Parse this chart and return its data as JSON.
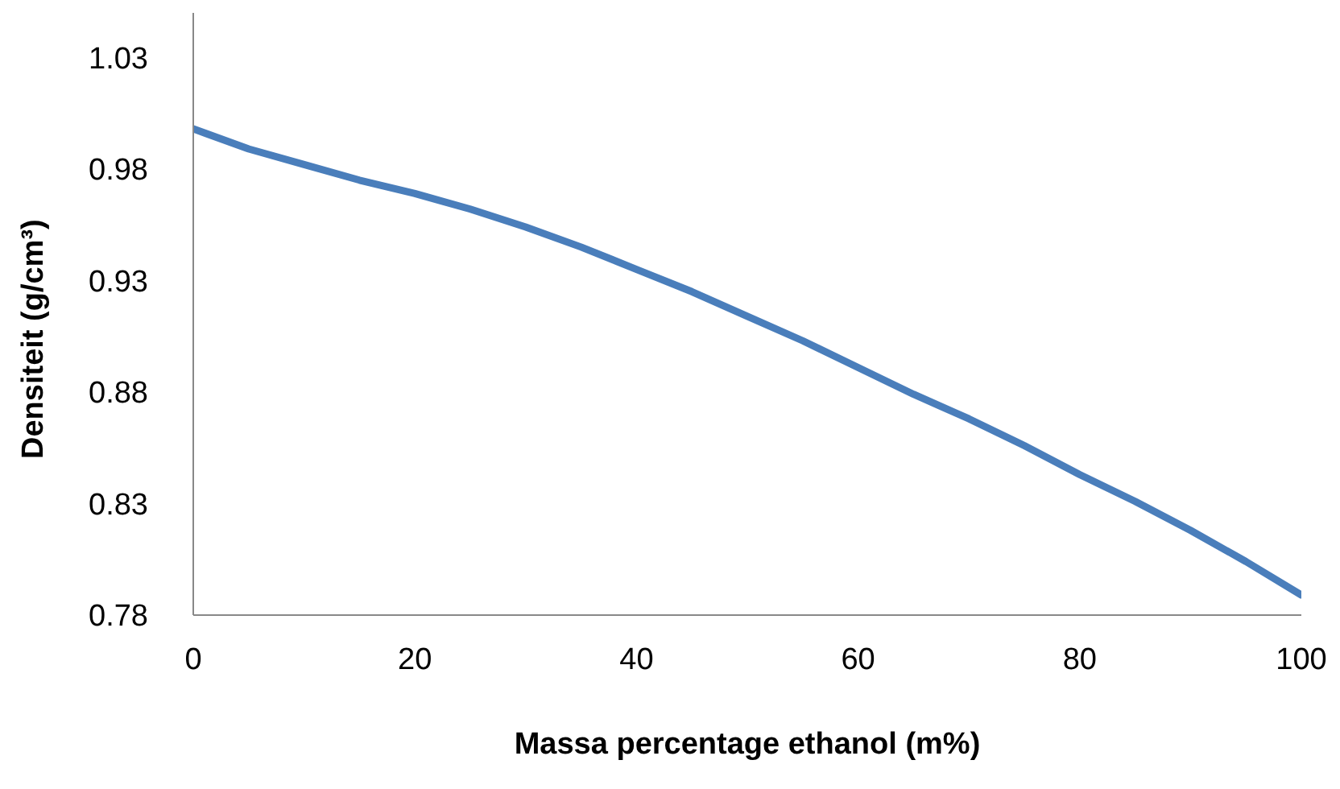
{
  "chart_data": {
    "type": "line",
    "xlabel": "Massa percentage ethanol (m%)",
    "ylabel": "Densiteit (g/cm³)",
    "x": [
      0,
      5,
      10,
      15,
      20,
      25,
      30,
      35,
      40,
      45,
      50,
      55,
      60,
      65,
      70,
      75,
      80,
      85,
      90,
      95,
      100
    ],
    "series": [
      {
        "color": "#4a7ebb",
        "values": [
          0.998,
          0.989,
          0.982,
          0.975,
          0.969,
          0.962,
          0.954,
          0.945,
          0.935,
          0.925,
          0.914,
          0.903,
          0.891,
          0.879,
          0.868,
          0.856,
          0.843,
          0.831,
          0.818,
          0.804,
          0.789
        ]
      }
    ],
    "xlim": [
      0,
      100
    ],
    "xticks": [
      0,
      20,
      40,
      60,
      80,
      100
    ],
    "ylim": [
      0.78,
      1.05
    ],
    "yticks": [
      0.78,
      0.83,
      0.88,
      0.93,
      0.98,
      1.03
    ],
    "grid": false,
    "legend": false,
    "marker": "none",
    "line_style": "solid"
  }
}
